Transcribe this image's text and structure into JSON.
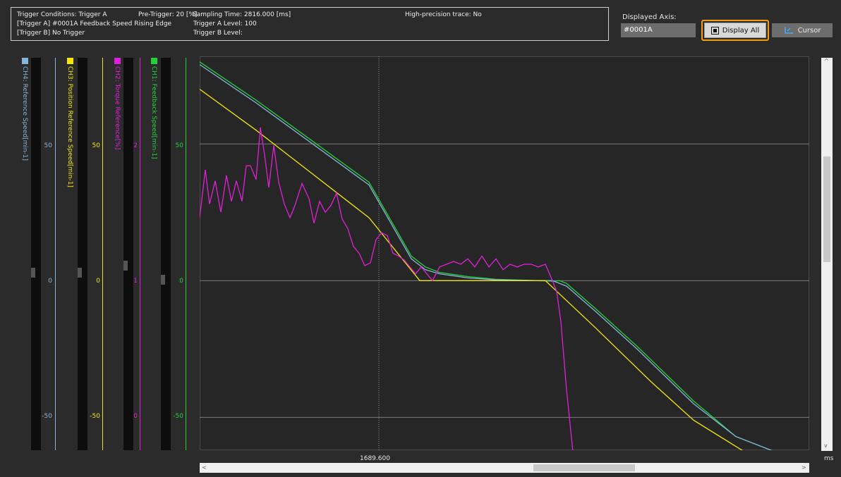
{
  "info": {
    "trigger_conditions": "Trigger Conditions: Trigger A",
    "trigger_a": "[Trigger A] #0001A Feedback Speed Rising Edge",
    "trigger_b": "[Trigger B] No Trigger",
    "pre_trigger": "Pre-Trigger: 20 [%]",
    "sampling_time": "Sampling Time: 2816.000 [ms]",
    "trigger_a_level": "Trigger A Level: 100",
    "trigger_b_level": "Trigger B Level:",
    "high_precision": "High-precision trace: No"
  },
  "displayed_axis": {
    "label": "Displayed Axis:",
    "value": "#0001A"
  },
  "buttons": {
    "display_all": "Display All",
    "cursor": "Cursor"
  },
  "channels": [
    {
      "title": "CH4: Reference Speed[min-1]",
      "color": "#87b4d8",
      "ticks": [
        "50",
        "0",
        "-50"
      ]
    },
    {
      "title": "CH3: Position Reference Speed[min-1]",
      "color": "#f3e600",
      "ticks": [
        "50",
        "0",
        "-50"
      ]
    },
    {
      "title": "CH2: Torque Reference[%]",
      "color": "#e020d8",
      "ticks": [
        "2",
        "1",
        "0"
      ]
    },
    {
      "title": "CH1: Feedback Speed[min-1]",
      "color": "#22d03a",
      "ticks": [
        "50",
        "0",
        "-50"
      ]
    }
  ],
  "plot": {
    "y_ticks": [
      "50",
      "0",
      "-50"
    ],
    "x_tick": "1689.600",
    "x_unit": "ms"
  },
  "chart_data": {
    "type": "line",
    "ylim": [
      -62,
      82
    ],
    "xlim": [
      0,
      864
    ],
    "series": [
      {
        "name": "CH1: Feedback Speed[min-1]",
        "color": "#22d03a",
        "x": [
          0,
          80,
          160,
          240,
          300,
          320,
          340,
          380,
          420,
          480,
          500,
          510,
          520,
          560,
          620,
          700,
          760,
          820
        ],
        "y": [
          80,
          66,
          51,
          36,
          9,
          5,
          3,
          1.5,
          0.5,
          0,
          -0.2,
          0,
          -1,
          -10,
          -24,
          -44,
          -57,
          -63
        ]
      },
      {
        "name": "CH4: Reference Speed[min-1]",
        "color": "#87b4d8",
        "x": [
          0,
          80,
          160,
          240,
          300,
          320,
          340,
          380,
          420,
          480,
          500,
          520,
          560,
          620,
          700,
          760,
          820
        ],
        "y": [
          79,
          65,
          50,
          35,
          8,
          4,
          2.5,
          1,
          0.3,
          0,
          0,
          -2,
          -11,
          -25,
          -45,
          -57,
          -63
        ]
      },
      {
        "name": "CH3: Position Reference Speed[min-1]",
        "color": "#f3e600",
        "x": [
          0,
          80,
          160,
          240,
          312,
          490,
          560,
          640,
          700,
          775
        ],
        "y": [
          70,
          55,
          39,
          23,
          0,
          0,
          -17,
          -37,
          -51,
          -63
        ]
      },
      {
        "name": "CH2: Torque Reference[%]",
        "color": "#e020d8",
        "x": [
          0,
          8,
          14,
          22,
          30,
          38,
          45,
          52,
          60,
          66,
          72,
          80,
          86,
          92,
          98,
          105,
          112,
          120,
          128,
          135,
          145,
          155,
          162,
          170,
          178,
          186,
          194,
          202,
          210,
          218,
          226,
          234,
          242,
          250,
          258,
          266,
          274,
          282,
          290,
          298,
          306,
          314,
          322,
          330,
          340,
          350,
          360,
          370,
          380,
          390,
          400,
          410,
          420,
          430,
          440,
          450,
          460,
          470,
          480,
          490,
          500,
          506,
          512,
          516,
          520,
          526,
          532,
          538
        ],
        "y": [
          1.46,
          1.81,
          1.56,
          1.73,
          1.5,
          1.77,
          1.58,
          1.73,
          1.58,
          1.84,
          1.84,
          1.74,
          2.12,
          1.92,
          1.68,
          1.99,
          1.72,
          1.56,
          1.46,
          1.55,
          1.71,
          1.6,
          1.42,
          1.58,
          1.5,
          1.55,
          1.64,
          1.45,
          1.38,
          1.25,
          1.2,
          1.11,
          1.13,
          1.3,
          1.35,
          1.33,
          1.2,
          1.18,
          1.15,
          1.1,
          1.05,
          1.1,
          1.05,
          1.0,
          1.1,
          1.12,
          1.14,
          1.12,
          1.16,
          1.1,
          1.18,
          1.1,
          1.16,
          1.08,
          1.12,
          1.1,
          1.12,
          1.12,
          1.1,
          1.12,
          1.0,
          0.92,
          0.7,
          0.45,
          0.2,
          -0.1,
          -0.4,
          -0.6
        ]
      }
    ]
  }
}
